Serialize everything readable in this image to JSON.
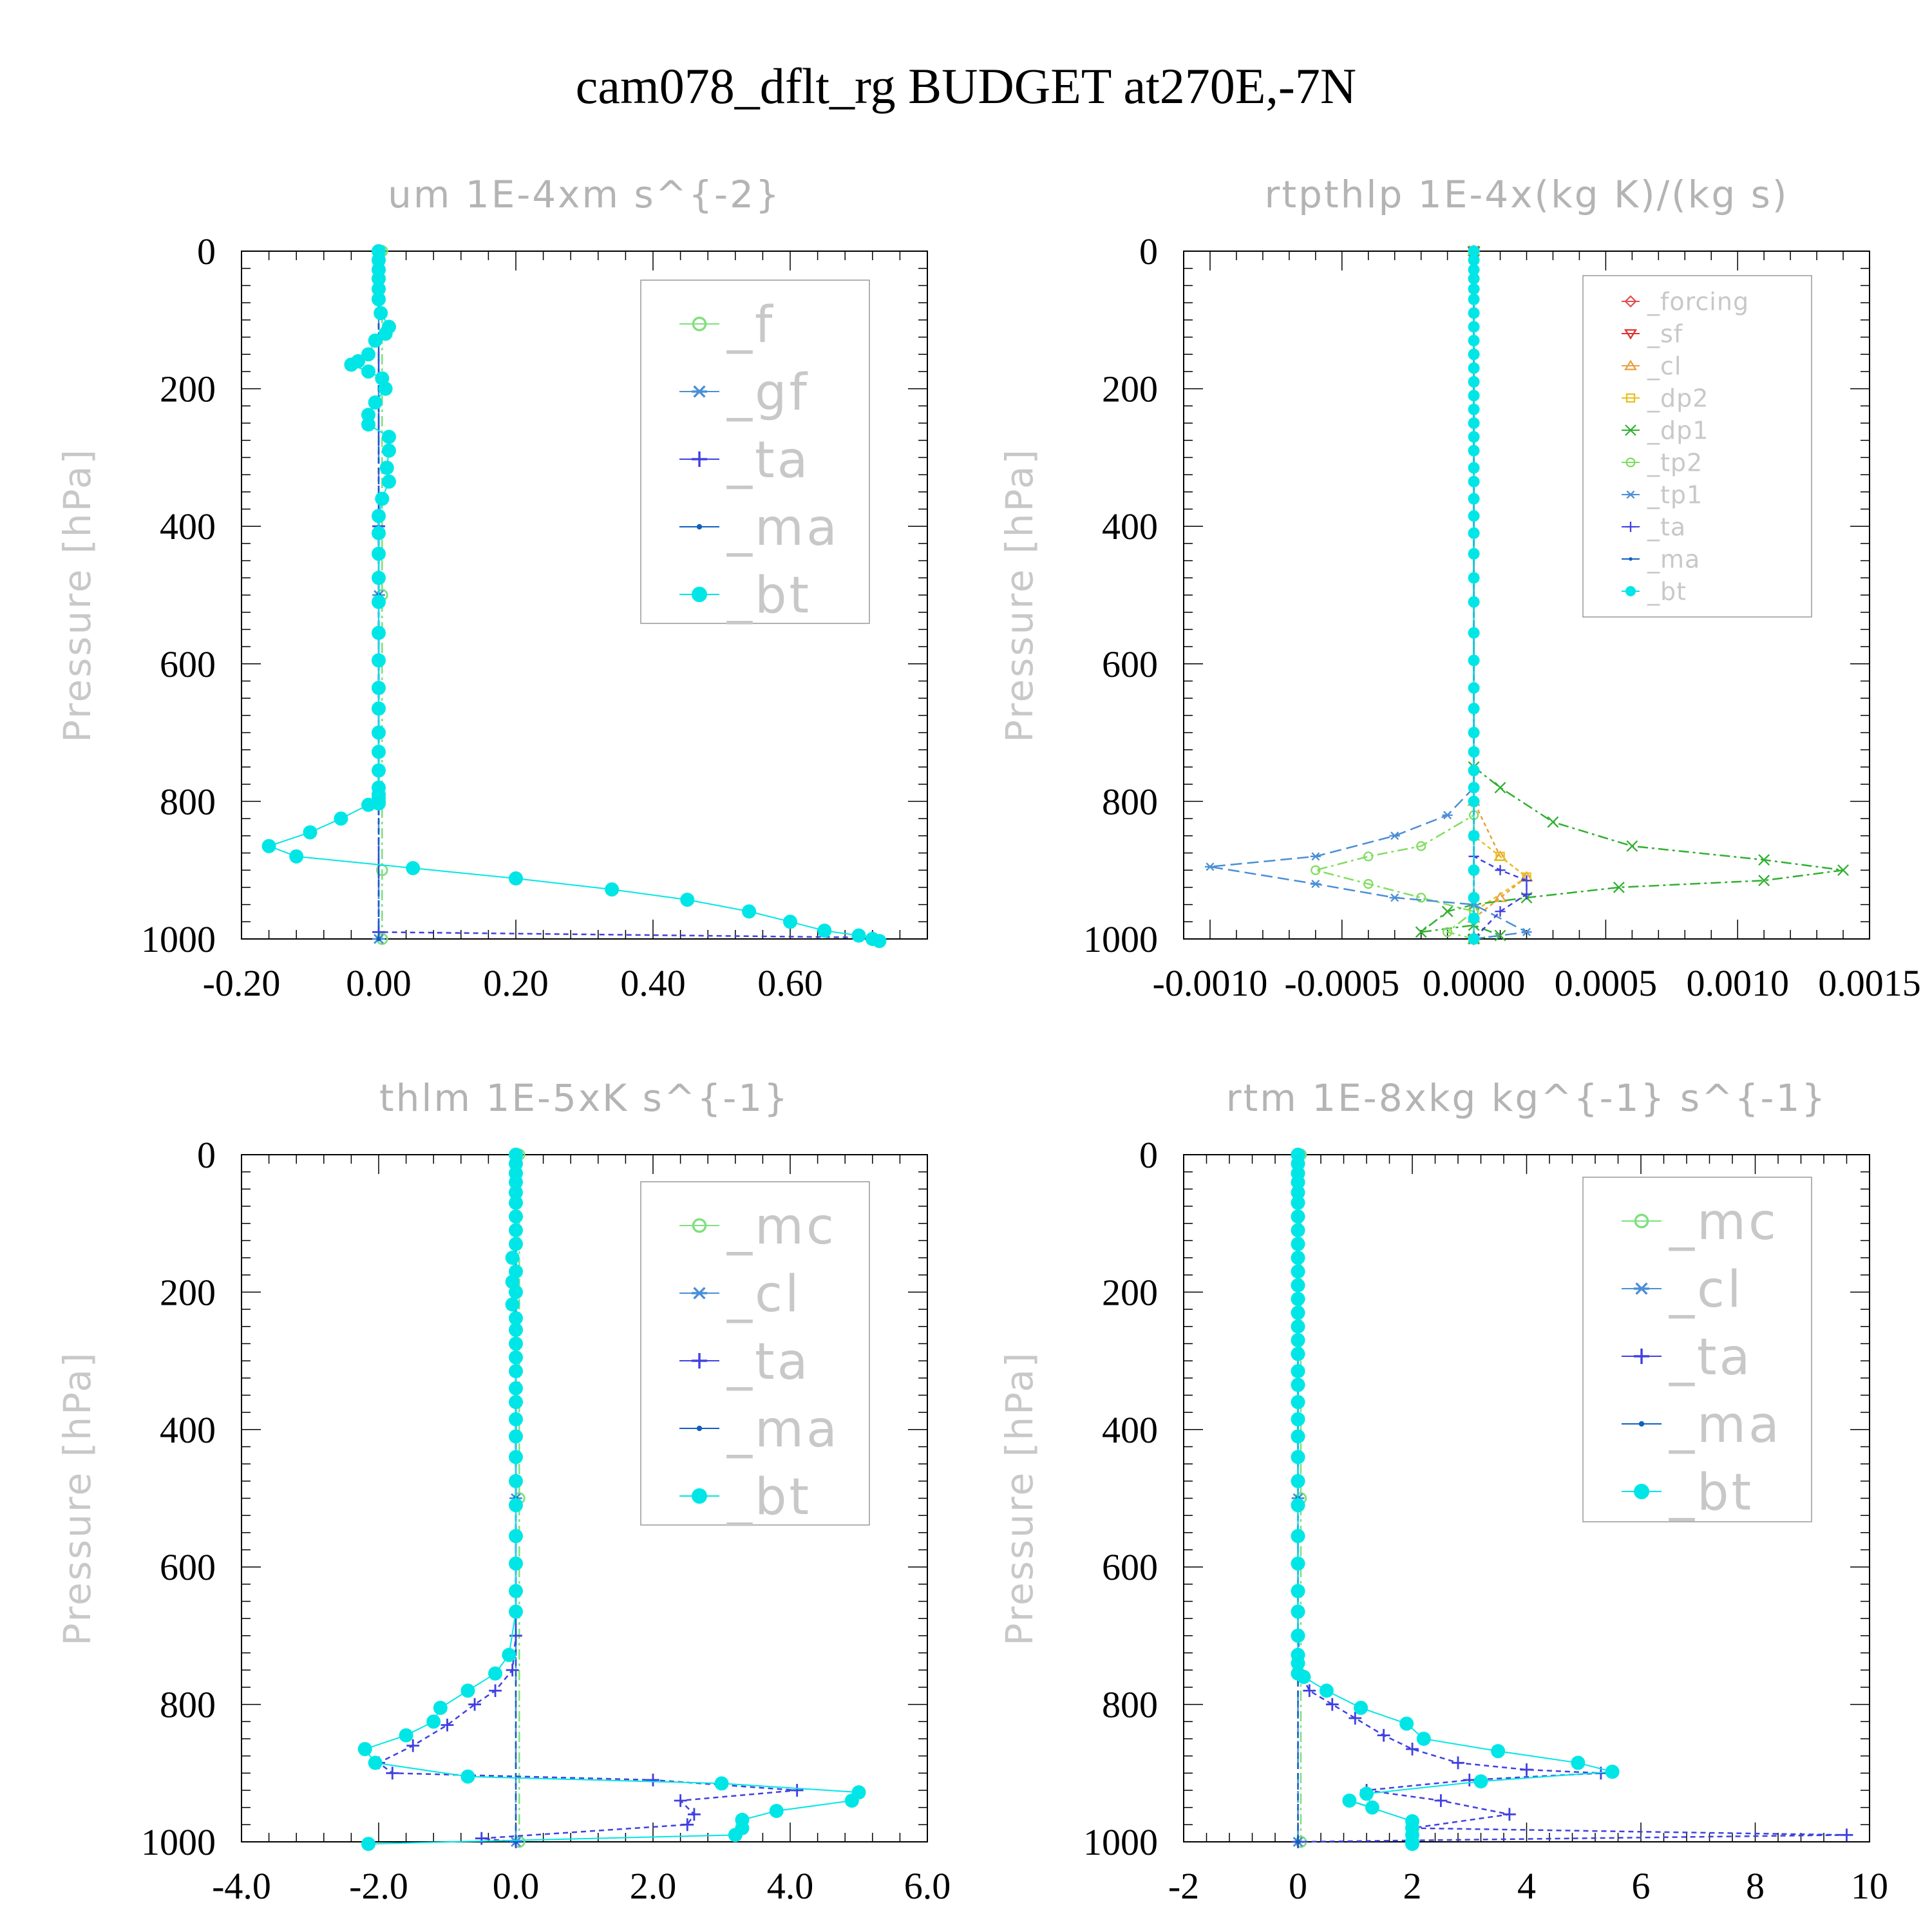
{
  "title": "cam078_dflt_rg  BUDGET at270E,-7N",
  "colors": {
    "_f": "#7ee07e",
    "_gf": "#4a8fd6",
    "_ta": "#4040e0",
    "_ma": "#1060c0",
    "_bt": "#00e6e6",
    "_forcing": "#e05050",
    "_sf": "#e03030",
    "_cl_rt": "#e8a040",
    "_dp2": "#e8c020",
    "_dp1": "#30b030",
    "_tp2": "#80dd60",
    "_tp1": "#4a8fd6",
    "_mc": "#7ee07e",
    "_cl": "#4a8fd6",
    "axis_label": "#c8c8c8",
    "subtitle": "#b4b4b4"
  },
  "chart_data": [
    {
      "type": "line",
      "subtitle": "um  1E-4xm s^{-2}",
      "ylabel": "Pressure [hPa]",
      "ylim": [
        1000,
        0
      ],
      "xlim": [
        -0.2,
        0.8
      ],
      "xticks": [
        -0.2,
        0.0,
        0.2,
        0.4,
        0.6
      ],
      "xtick_labels": [
        "-0.20",
        "0.00",
        "0.20",
        "0.40",
        "0.60"
      ],
      "yticks": [
        0,
        200,
        400,
        600,
        800,
        1000
      ],
      "ytick_labels": [
        "0",
        "200",
        "400",
        "600",
        "800",
        "1000"
      ],
      "legend": "top-right",
      "series": [
        {
          "name": "_f",
          "marker": "circle-open",
          "x": [
            0.005,
            0.005,
            0.005,
            0.005
          ],
          "y": [
            0,
            500,
            900,
            1000
          ]
        },
        {
          "name": "_gf",
          "marker": "star",
          "x": [
            0.0,
            0.0,
            0.0
          ],
          "y": [
            0,
            500,
            1000
          ]
        },
        {
          "name": "_ta",
          "marker": "plus",
          "x": [
            0,
            0,
            0,
            0,
            0.72
          ],
          "y": [
            0,
            400,
            800,
            990,
            998
          ]
        },
        {
          "name": "_ma",
          "marker": "dot",
          "x": [
            0,
            0,
            0
          ],
          "y": [
            0,
            500,
            1000
          ]
        },
        {
          "name": "_bt",
          "marker": "filled-circle",
          "x": [
            0,
            0,
            0,
            0,
            0,
            0,
            0.003,
            0.015,
            0.01,
            -0.005,
            -0.015,
            -0.03,
            -0.04,
            -0.015,
            0.005,
            0.01,
            -0.005,
            -0.015,
            -0.015,
            0.015,
            0.015,
            0.012,
            0.015,
            0.005,
            0,
            0,
            0,
            0,
            0,
            0,
            0,
            0,
            0,
            0,
            0,
            0,
            0,
            0,
            0,
            0,
            0,
            -0.015,
            -0.055,
            -0.1,
            -0.16,
            -0.12,
            0.05,
            0.2,
            0.34,
            0.45,
            0.54,
            0.6,
            0.65,
            0.7,
            0.72,
            0.73
          ],
          "y": [
            0,
            13,
            27,
            40,
            55,
            70,
            90,
            110,
            120,
            130,
            150,
            160,
            165,
            175,
            185,
            200,
            220,
            238,
            252,
            270,
            290,
            315,
            335,
            360,
            385,
            410,
            440,
            475,
            510,
            555,
            595,
            635,
            665,
            700,
            728,
            755,
            780,
            790,
            795,
            800,
            803,
            805,
            825,
            845,
            865,
            880,
            897,
            912,
            928,
            943,
            960,
            975,
            988,
            995,
            1000,
            1003
          ]
        }
      ]
    },
    {
      "type": "line",
      "subtitle": "rtpthlp  1E-4x(kg K)/(kg s)",
      "ylabel": "Pressure [hPa]",
      "ylim": [
        1000,
        0
      ],
      "xlim": [
        -0.0011,
        0.0015
      ],
      "xticks": [
        -0.001,
        -0.0005,
        0.0,
        0.0005,
        0.001,
        0.0015
      ],
      "xtick_labels": [
        "-0.0010",
        "-0.0005",
        "0.0000",
        "0.0005",
        "0.0010",
        "0.0015"
      ],
      "yticks": [
        0,
        200,
        400,
        600,
        800,
        1000
      ],
      "ytick_labels": [
        "0",
        "200",
        "400",
        "600",
        "800",
        "1000"
      ],
      "legend": "top-right",
      "series": [
        {
          "name": "_forcing",
          "marker": "diamond-open",
          "x": [
            0,
            0
          ],
          "y": [
            0,
            1000
          ]
        },
        {
          "name": "_sf",
          "marker": "triangle-down",
          "x": [
            0,
            0
          ],
          "y": [
            0,
            1000
          ]
        },
        {
          "name": "_cl",
          "colorKey": "_cl_rt",
          "marker": "triangle-up",
          "x": [
            0,
            0,
            0.0001,
            0.0002,
            0.0001,
            0,
            0
          ],
          "y": [
            0,
            800,
            880,
            910,
            940,
            970,
            1000
          ]
        },
        {
          "name": "_dp2",
          "marker": "square-open",
          "x": [
            0,
            0,
            0.0001,
            0.0002,
            0.0,
            0
          ],
          "y": [
            0,
            850,
            880,
            910,
            960,
            1000
          ]
        },
        {
          "name": "_dp1",
          "marker": "x",
          "x": [
            0,
            0,
            0.0001,
            0.0003,
            0.0006,
            0.0011,
            0.0014,
            0.0011,
            0.00055,
            0.0002,
            0.0,
            -0.0001,
            -0.0002,
            0,
            0.0001,
            0
          ],
          "y": [
            0,
            750,
            780,
            830,
            865,
            885,
            900,
            915,
            925,
            940,
            950,
            960,
            990,
            980,
            995,
            1000
          ]
        },
        {
          "name": "_tp2",
          "marker": "circle-open",
          "x": [
            0,
            0,
            -0.0002,
            -0.0004,
            -0.0006,
            -0.0004,
            -0.0002,
            0,
            -0.0001,
            0
          ],
          "y": [
            0,
            820,
            865,
            880,
            900,
            920,
            940,
            960,
            990,
            1000
          ]
        },
        {
          "name": "_tp1",
          "marker": "star",
          "x": [
            0,
            0,
            -0.0001,
            -0.0003,
            -0.0006,
            -0.001,
            -0.0006,
            -0.0003,
            0,
            0.0002,
            0
          ],
          "y": [
            0,
            780,
            820,
            850,
            880,
            895,
            920,
            940,
            950,
            990,
            1000
          ]
        },
        {
          "name": "_ta",
          "marker": "plus",
          "x": [
            0,
            0,
            0.0001,
            0.0002,
            0.0002,
            0.0001,
            0
          ],
          "y": [
            0,
            880,
            900,
            915,
            935,
            960,
            1000
          ]
        },
        {
          "name": "_ma",
          "marker": "dot",
          "x": [
            0,
            0
          ],
          "y": [
            0,
            1000
          ]
        },
        {
          "name": "_bt",
          "marker": "filled-circle",
          "x": [
            0,
            0,
            0,
            0,
            0,
            0,
            0,
            0,
            0,
            0,
            0,
            0,
            0,
            0,
            0,
            0,
            0,
            0,
            0,
            0,
            0,
            0,
            0,
            0,
            0,
            0,
            0,
            0,
            0,
            0,
            0,
            0,
            0,
            0,
            0,
            0,
            0,
            0,
            0
          ],
          "y": [
            0,
            13,
            27,
            40,
            55,
            70,
            90,
            110,
            130,
            150,
            170,
            190,
            210,
            230,
            250,
            270,
            290,
            315,
            335,
            360,
            385,
            410,
            440,
            475,
            510,
            555,
            595,
            635,
            665,
            700,
            728,
            755,
            780,
            800,
            850,
            900,
            940,
            970,
            1000
          ]
        }
      ]
    },
    {
      "type": "line",
      "subtitle": "thlm  1E-5xK s^{-1}",
      "ylabel": "Pressure [hPa]",
      "ylim": [
        1000,
        0
      ],
      "xlim": [
        -4.0,
        6.0
      ],
      "xticks": [
        -4.0,
        -2.0,
        0.0,
        2.0,
        4.0,
        6.0
      ],
      "xtick_labels": [
        "-4.0",
        "-2.0",
        "0.0",
        "2.0",
        "4.0",
        "6.0"
      ],
      "yticks": [
        0,
        200,
        400,
        600,
        800,
        1000
      ],
      "ytick_labels": [
        "0",
        "200",
        "400",
        "600",
        "800",
        "1000"
      ],
      "legend": "top-right",
      "series": [
        {
          "name": "_mc",
          "marker": "circle-open",
          "x": [
            0.05,
            0.05,
            0.05
          ],
          "y": [
            0,
            500,
            1000
          ]
        },
        {
          "name": "_cl",
          "marker": "star",
          "x": [
            0,
            0,
            0
          ],
          "y": [
            0,
            500,
            1000
          ]
        },
        {
          "name": "_ta",
          "marker": "plus",
          "x": [
            0,
            0,
            -0.05,
            -0.3,
            -0.6,
            -1.0,
            -1.5,
            -2.0,
            -1.8,
            2.0,
            4.1,
            2.4,
            2.6,
            2.5,
            -0.5,
            0
          ],
          "y": [
            0,
            700,
            750,
            780,
            800,
            830,
            860,
            885,
            900,
            910,
            925,
            940,
            960,
            975,
            995,
            1000
          ]
        },
        {
          "name": "_ma",
          "marker": "dot",
          "x": [
            0,
            0,
            0
          ],
          "y": [
            0,
            500,
            1000
          ]
        },
        {
          "name": "_bt",
          "marker": "filled-circle",
          "x": [
            0,
            0,
            0,
            0,
            0,
            0,
            0,
            0,
            0,
            -0.05,
            0,
            -0.05,
            0,
            -0.05,
            0,
            0,
            0,
            0,
            0,
            0,
            0,
            0,
            0,
            0,
            0,
            0,
            0,
            0,
            0,
            0,
            -0.1,
            -0.3,
            -0.7,
            -1.1,
            -1.2,
            -1.6,
            -2.2,
            -2.05,
            -0.7,
            3.0,
            5.0,
            4.9,
            3.8,
            3.3,
            3.3,
            3.2,
            -2.15
          ],
          "y": [
            0,
            13,
            27,
            40,
            55,
            70,
            90,
            110,
            130,
            150,
            170,
            185,
            200,
            218,
            238,
            255,
            275,
            295,
            315,
            340,
            360,
            385,
            410,
            440,
            475,
            510,
            555,
            595,
            635,
            665,
            728,
            755,
            780,
            805,
            825,
            845,
            865,
            885,
            905,
            915,
            928,
            940,
            955,
            968,
            980,
            990,
            1003
          ]
        }
      ]
    },
    {
      "type": "line",
      "subtitle": "rtm  1E-8xkg kg^{-1} s^{-1}",
      "ylabel": "Pressure [hPa]",
      "ylim": [
        1000,
        0
      ],
      "xlim": [
        -2,
        10
      ],
      "xticks": [
        -2,
        0,
        2,
        4,
        6,
        8,
        10
      ],
      "xtick_labels": [
        "-2",
        "0",
        "2",
        "4",
        "6",
        "8",
        "10"
      ],
      "yticks": [
        0,
        200,
        400,
        600,
        800,
        1000
      ],
      "ytick_labels": [
        "0",
        "200",
        "400",
        "600",
        "800",
        "1000"
      ],
      "legend": "top-right",
      "series": [
        {
          "name": "_mc",
          "marker": "circle-open",
          "x": [
            0.05,
            0.05,
            0.05
          ],
          "y": [
            0,
            500,
            1000
          ]
        },
        {
          "name": "_cl",
          "marker": "star",
          "x": [
            0,
            0,
            0
          ],
          "y": [
            0,
            500,
            1000
          ]
        },
        {
          "name": "_ta",
          "marker": "plus",
          "x": [
            0,
            0,
            0.05,
            0.2,
            0.6,
            1.0,
            1.5,
            2.0,
            2.8,
            4.0,
            5.3,
            3.0,
            1.2,
            2.5,
            3.7,
            2.0,
            9.6,
            0
          ],
          "y": [
            0,
            700,
            755,
            780,
            800,
            820,
            845,
            865,
            885,
            895,
            900,
            910,
            925,
            940,
            960,
            980,
            990,
            1000
          ]
        },
        {
          "name": "_ma",
          "marker": "dot",
          "x": [
            0,
            0,
            0
          ],
          "y": [
            0,
            500,
            1000
          ]
        },
        {
          "name": "_bt",
          "marker": "filled-circle",
          "x": [
            0,
            0,
            0,
            0,
            0,
            0,
            0,
            0,
            0,
            0,
            0,
            0,
            0,
            0,
            0,
            0,
            0,
            0,
            0,
            0,
            0,
            0,
            0,
            0,
            0,
            0,
            0,
            0,
            0,
            0,
            0,
            0,
            0,
            0.1,
            0.5,
            1.1,
            1.9,
            2.2,
            3.5,
            4.9,
            5.5,
            3.2,
            1.2,
            1.3,
            0.9,
            2.0,
            2.0,
            2.0,
            2.0,
            2.0
          ],
          "y": [
            0,
            13,
            27,
            40,
            55,
            70,
            90,
            110,
            130,
            150,
            170,
            190,
            210,
            230,
            250,
            270,
            290,
            315,
            335,
            360,
            385,
            410,
            440,
            475,
            510,
            555,
            595,
            635,
            665,
            700,
            728,
            740,
            755,
            760,
            780,
            805,
            828,
            850,
            868,
            885,
            898,
            912,
            930,
            950,
            940,
            970,
            980,
            990,
            1000,
            1003
          ]
        }
      ]
    }
  ]
}
